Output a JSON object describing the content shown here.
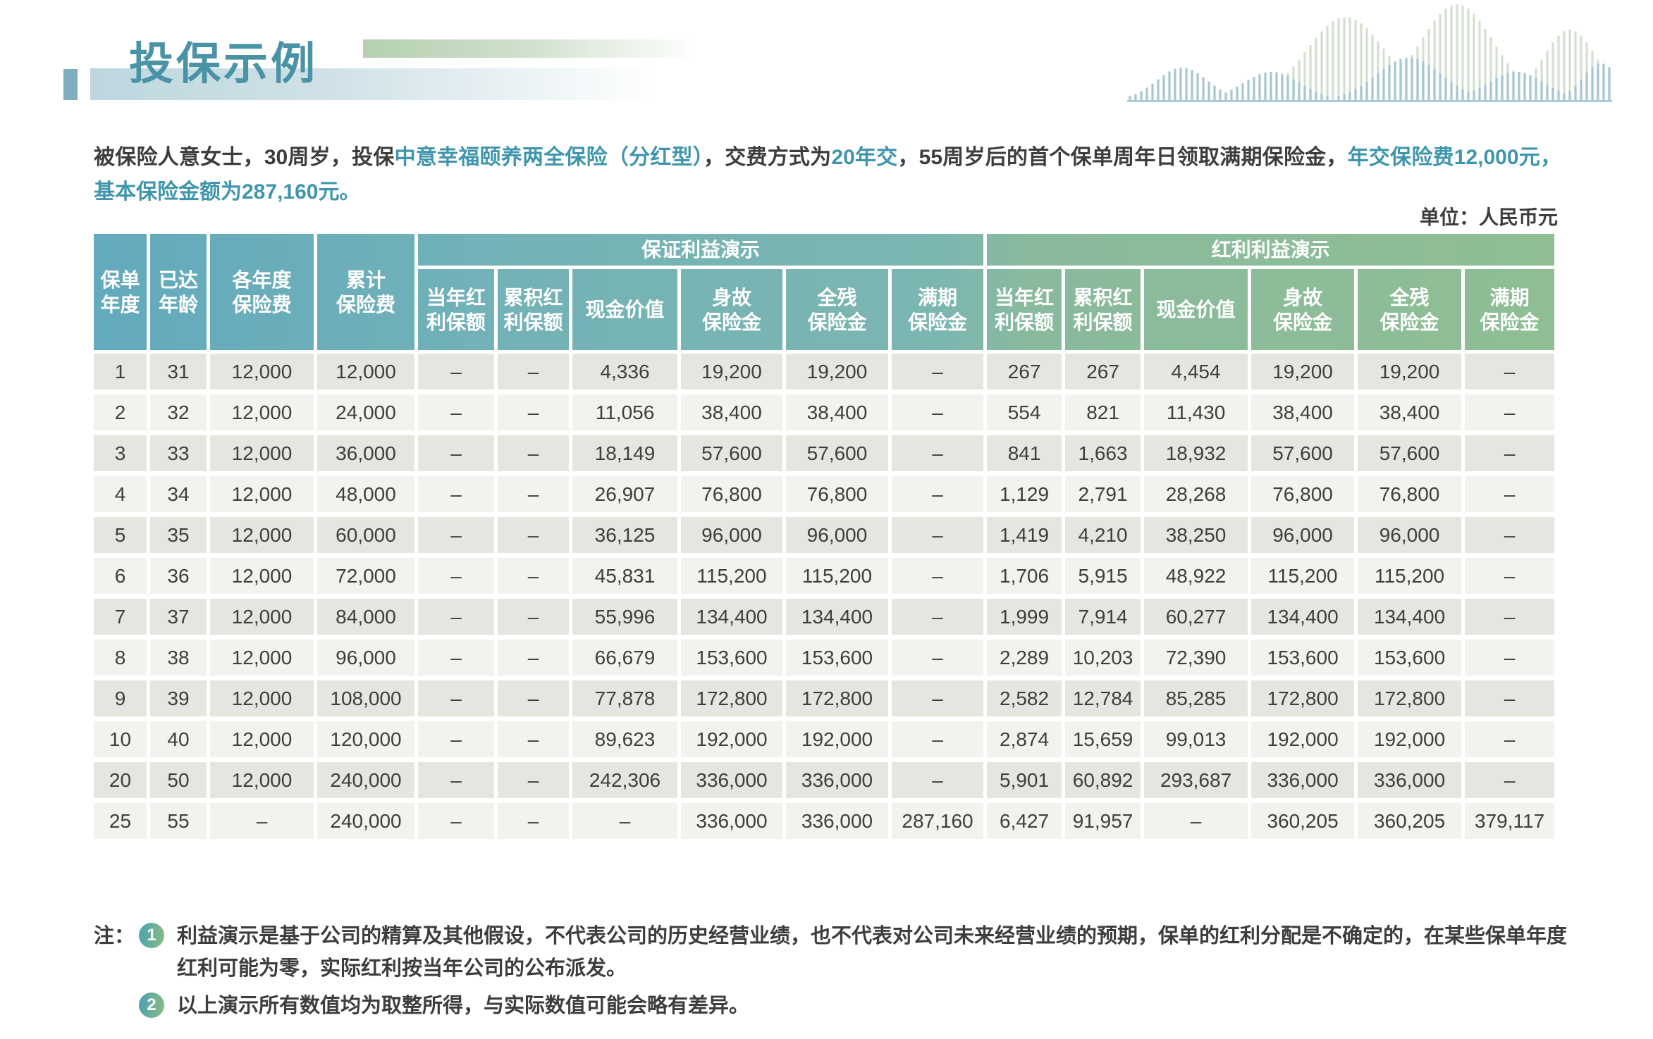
{
  "title": "投保示例",
  "unit_label": "单位：人民币元",
  "intro": {
    "segments": [
      {
        "text": "被保险人意女士，30周岁，投保"
      },
      {
        "text": "中意幸福颐养两全保险（分红型）"
      },
      {
        "text": "，交费方式为"
      },
      {
        "text": "20年交"
      },
      {
        "text": "，55周岁后的首个保单周年日领取满期保险金，"
      },
      {
        "text": "年交保险费12,000元，基本保险金额为287,160元。"
      }
    ]
  },
  "table": {
    "base_headers": [
      "保单\n年度",
      "已达\n年龄",
      "各年度\n保险费",
      "累计\n保险费"
    ],
    "groups": [
      {
        "label": "保证利益演示",
        "columns": [
          "当年红\n利保额",
          "累积红\n利保额",
          "现金价值",
          "身故\n保险金",
          "全残\n保险金",
          "满期\n保险金"
        ]
      },
      {
        "label": "红利利益演示",
        "columns": [
          "当年红\n利保额",
          "累积红\n利保额",
          "现金价值",
          "身故\n保险金",
          "全残\n保险金",
          "满期\n保险金"
        ]
      }
    ],
    "rows": [
      [
        "1",
        "31",
        "12,000",
        "12,000",
        "–",
        "–",
        "4,336",
        "19,200",
        "19,200",
        "–",
        "267",
        "267",
        "4,454",
        "19,200",
        "19,200",
        "–"
      ],
      [
        "2",
        "32",
        "12,000",
        "24,000",
        "–",
        "–",
        "11,056",
        "38,400",
        "38,400",
        "–",
        "554",
        "821",
        "11,430",
        "38,400",
        "38,400",
        "–"
      ],
      [
        "3",
        "33",
        "12,000",
        "36,000",
        "–",
        "–",
        "18,149",
        "57,600",
        "57,600",
        "–",
        "841",
        "1,663",
        "18,932",
        "57,600",
        "57,600",
        "–"
      ],
      [
        "4",
        "34",
        "12,000",
        "48,000",
        "–",
        "–",
        "26,907",
        "76,800",
        "76,800",
        "–",
        "1,129",
        "2,791",
        "28,268",
        "76,800",
        "76,800",
        "–"
      ],
      [
        "5",
        "35",
        "12,000",
        "60,000",
        "–",
        "–",
        "36,125",
        "96,000",
        "96,000",
        "–",
        "1,419",
        "4,210",
        "38,250",
        "96,000",
        "96,000",
        "–"
      ],
      [
        "6",
        "36",
        "12,000",
        "72,000",
        "–",
        "–",
        "45,831",
        "115,200",
        "115,200",
        "–",
        "1,706",
        "5,915",
        "48,922",
        "115,200",
        "115,200",
        "–"
      ],
      [
        "7",
        "37",
        "12,000",
        "84,000",
        "–",
        "–",
        "55,996",
        "134,400",
        "134,400",
        "–",
        "1,999",
        "7,914",
        "60,277",
        "134,400",
        "134,400",
        "–"
      ],
      [
        "8",
        "38",
        "12,000",
        "96,000",
        "–",
        "–",
        "66,679",
        "153,600",
        "153,600",
        "–",
        "2,289",
        "10,203",
        "72,390",
        "153,600",
        "153,600",
        "–"
      ],
      [
        "9",
        "39",
        "12,000",
        "108,000",
        "–",
        "–",
        "77,878",
        "172,800",
        "172,800",
        "–",
        "2,582",
        "12,784",
        "85,285",
        "172,800",
        "172,800",
        "–"
      ],
      [
        "10",
        "40",
        "12,000",
        "120,000",
        "–",
        "–",
        "89,623",
        "192,000",
        "192,000",
        "–",
        "2,874",
        "15,659",
        "99,013",
        "192,000",
        "192,000",
        "–"
      ],
      [
        "20",
        "50",
        "12,000",
        "240,000",
        "–",
        "–",
        "242,306",
        "336,000",
        "336,000",
        "–",
        "5,901",
        "60,892",
        "293,687",
        "336,000",
        "336,000",
        "–"
      ],
      [
        "25",
        "55",
        "–",
        "240,000",
        "–",
        "–",
        "–",
        "336,000",
        "336,000",
        "287,160",
        "6,427",
        "91,957",
        "–",
        "360,205",
        "360,205",
        "379,117"
      ]
    ]
  },
  "notes": {
    "label": "注：",
    "items": [
      {
        "num": "1",
        "text": "利益演示是基于公司的精算及其他假设，不代表公司的历史经营业绩，也不代表对公司未来经营业绩的预期，保单的红利分配是不确定的，在某些保单年度红利可能为零，实际红利按当年公司的公布派发。"
      },
      {
        "num": "2",
        "text": "以上演示所有数值均为取整所得，与实际数值可能会略有差异。"
      }
    ]
  },
  "colors": {
    "title_teal": "#4a93a6",
    "intro_highlight": "#3f96ac",
    "header_left_teal": "#62aabd",
    "header_mid_teal": "#7cb6b1",
    "header_right_green": "#8fbe94",
    "row_dark": "#e3e7df",
    "row_light": "#f1f3ee",
    "wave_blue": "#a6c6d2",
    "wave_green": "#d3e0ce"
  }
}
